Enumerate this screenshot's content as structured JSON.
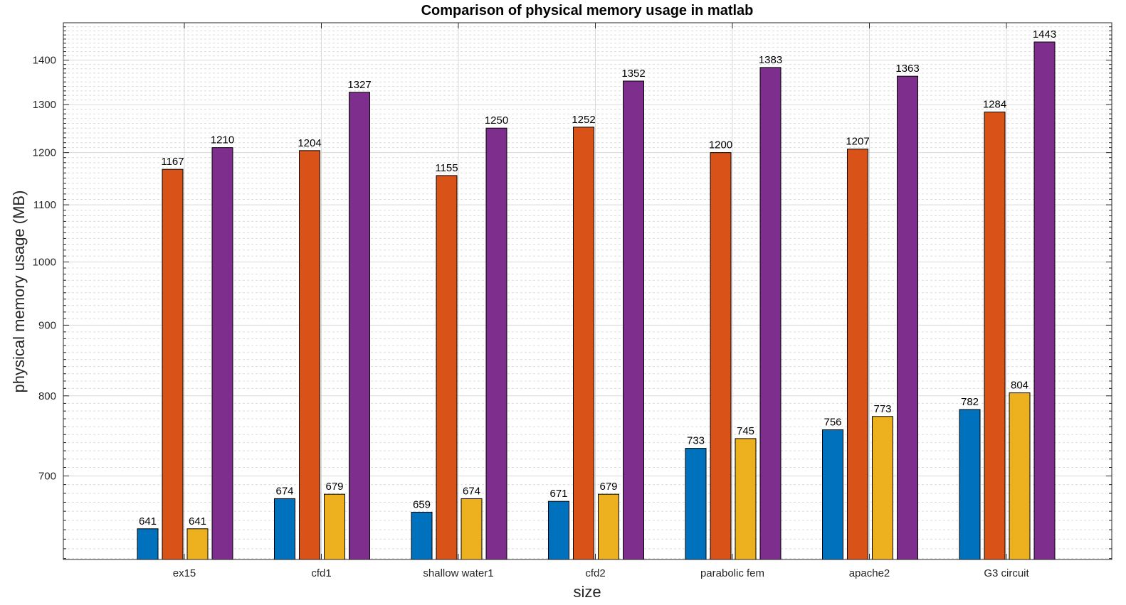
{
  "chart_data": {
    "type": "bar",
    "title": "Comparison of physical memory usage in matlab",
    "xlabel": "size",
    "ylabel": "physical memory usage (MB)",
    "yscale": "log",
    "ylim": [
      609,
      1490
    ],
    "yticks": [
      700,
      800,
      900,
      1000,
      1100,
      1200,
      1300,
      1400
    ],
    "grid": true,
    "minor_grid": true,
    "categories": [
      "ex15",
      "cfd1",
      "shallow water1",
      "cfd2",
      "parabolic fem",
      "apache2",
      "G3 circuit"
    ],
    "series": [
      {
        "color": "#0072BD",
        "values": [
          641,
          674,
          659,
          671,
          733,
          756,
          782
        ]
      },
      {
        "color": "#D95319",
        "values": [
          1167,
          1204,
          1155,
          1252,
          1200,
          1207,
          1284
        ]
      },
      {
        "color": "#EDB120",
        "values": [
          641,
          679,
          674,
          679,
          745,
          773,
          804
        ]
      },
      {
        "color": "#7E2F8E",
        "values": [
          1210,
          1327,
          1250,
          1352,
          1383,
          1363,
          1443
        ]
      }
    ]
  }
}
